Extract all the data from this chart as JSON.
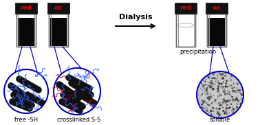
{
  "bg_color": "#ffffff",
  "arrow_text": "Dialysis",
  "label_free": "free -SH",
  "label_cross": "crosslinked S-S",
  "label_precip": "precipitation",
  "label_soluble": "soluble",
  "cap_color": "#111111",
  "red_label_color": "#dd0000",
  "blue_circle_color": "#0000cc",
  "nanotube_color": "#111111",
  "peptide_free_color": "#3366ff",
  "peptide_cross_blue": "#3366ff",
  "peptide_cross_red": "#cc0000",
  "vial_outline": "#666666",
  "glass_inner": "#aaaaaa"
}
